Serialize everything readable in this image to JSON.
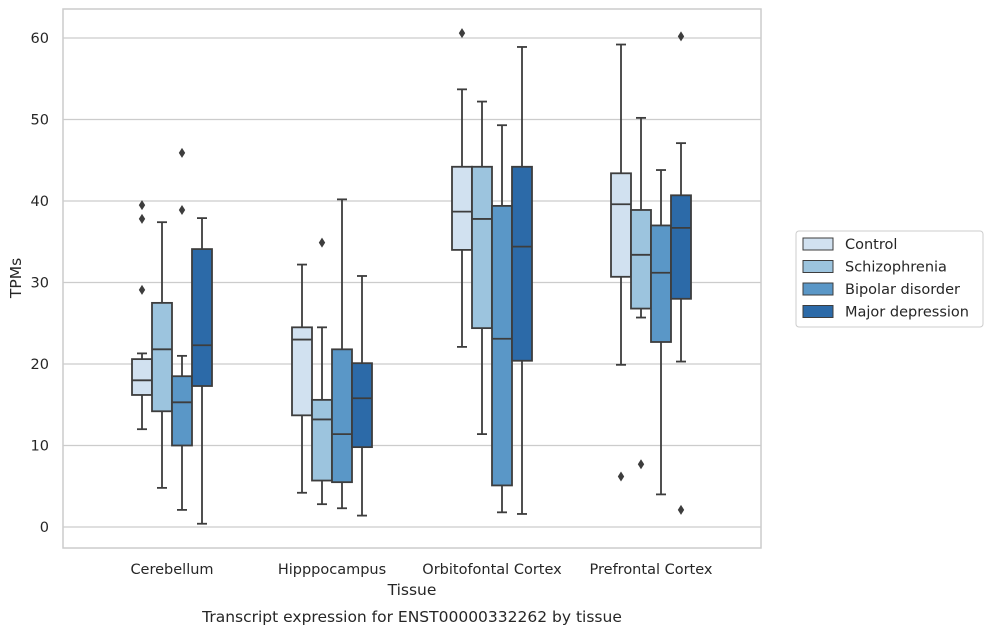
{
  "chart_data": {
    "type": "box",
    "caption": "Transcript expression for ENST00000332262 by tissue",
    "xlabel": "Tissue",
    "ylabel": "TPMs",
    "ylim": [
      -2.5,
      63.5
    ],
    "yticks": [
      0,
      10,
      20,
      30,
      40,
      50,
      60
    ],
    "grid": "horizontal",
    "legend_position": "right",
    "categories": [
      "Cerebellum",
      "Hipppocampus",
      "Orbitofontal Cortex",
      "Prefrontal Cortex"
    ],
    "series": [
      {
        "name": "Control",
        "color": "#d1e1f0",
        "boxes": [
          {
            "whisker_low": 12.0,
            "q1": 16.2,
            "median": 18.0,
            "q3": 20.6,
            "whisker_high": 21.3,
            "outliers": [
              29.1,
              37.8,
              39.5
            ]
          },
          {
            "whisker_low": 4.2,
            "q1": 13.7,
            "median": 23.0,
            "q3": 24.5,
            "whisker_high": 32.2,
            "outliers": []
          },
          {
            "whisker_low": 22.1,
            "q1": 34.0,
            "median": 38.7,
            "q3": 44.2,
            "whisker_high": 53.7,
            "outliers": [
              60.6
            ]
          },
          {
            "whisker_low": 19.9,
            "q1": 30.7,
            "median": 39.6,
            "q3": 43.4,
            "whisker_high": 59.2,
            "outliers": [
              6.2
            ]
          }
        ]
      },
      {
        "name": "Schizophrenia",
        "color": "#9cc4de",
        "boxes": [
          {
            "whisker_low": 4.8,
            "q1": 14.2,
            "median": 21.8,
            "q3": 27.5,
            "whisker_high": 37.4,
            "outliers": []
          },
          {
            "whisker_low": 2.8,
            "q1": 5.7,
            "median": 13.2,
            "q3": 15.6,
            "whisker_high": 24.5,
            "outliers": [
              34.9
            ]
          },
          {
            "whisker_low": 11.4,
            "q1": 24.4,
            "median": 37.8,
            "q3": 44.2,
            "whisker_high": 52.2,
            "outliers": []
          },
          {
            "whisker_low": 25.7,
            "q1": 26.8,
            "median": 33.4,
            "q3": 38.9,
            "whisker_high": 50.2,
            "outliers": [
              7.7
            ]
          }
        ]
      },
      {
        "name": "Bipolar disorder",
        "color": "#5a97c7",
        "boxes": [
          {
            "whisker_low": 2.1,
            "q1": 10.0,
            "median": 15.3,
            "q3": 18.5,
            "whisker_high": 21.0,
            "outliers": [
              38.9,
              45.9
            ]
          },
          {
            "whisker_low": 2.3,
            "q1": 5.5,
            "median": 11.4,
            "q3": 21.8,
            "whisker_high": 40.2,
            "outliers": []
          },
          {
            "whisker_low": 1.8,
            "q1": 5.1,
            "median": 23.1,
            "q3": 39.4,
            "whisker_high": 49.3,
            "outliers": []
          },
          {
            "whisker_low": 4.0,
            "q1": 22.7,
            "median": 31.2,
            "q3": 37.0,
            "whisker_high": 43.8,
            "outliers": []
          }
        ]
      },
      {
        "name": "Major depression",
        "color": "#2c6aa8",
        "boxes": [
          {
            "whisker_low": 0.4,
            "q1": 17.3,
            "median": 22.3,
            "q3": 34.1,
            "whisker_high": 37.9,
            "outliers": []
          },
          {
            "whisker_low": 1.4,
            "q1": 9.8,
            "median": 15.8,
            "q3": 20.1,
            "whisker_high": 30.8,
            "outliers": []
          },
          {
            "whisker_low": 1.6,
            "q1": 20.4,
            "median": 34.4,
            "q3": 44.2,
            "whisker_high": 58.9,
            "outliers": []
          },
          {
            "whisker_low": 20.3,
            "q1": 28.0,
            "median": 36.7,
            "q3": 40.7,
            "whisker_high": 47.1,
            "outliers": [
              2.1,
              60.2
            ]
          }
        ]
      }
    ]
  }
}
